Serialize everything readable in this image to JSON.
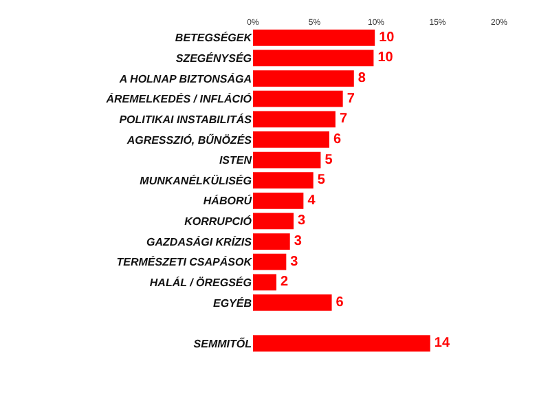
{
  "chart_data": {
    "type": "bar",
    "orientation": "horizontal",
    "categories": [
      "BETEGSÉGEK",
      "SZEGÉNYSÉG",
      "A HOLNAP BIZTONSÁGA",
      "ÁREMELKEDÉS / INFLÁCIÓ",
      "POLITIKAI INSTABILITÁS",
      "AGRESSZIÓ, BŰNÖZÉS",
      "ISTEN",
      "MUNKANÉLKÜLISÉG",
      "HÁBORÚ",
      "KORRUPCIÓ",
      "GAZDASÁGI KRÍZIS",
      "TERMÉSZETI CSAPÁSOK",
      "HALÁL / ÖREGSÉG",
      "EGYÉB",
      null,
      "SEMMITŐL"
    ],
    "values": [
      9.9,
      9.8,
      8.2,
      7.3,
      6.7,
      6.2,
      5.5,
      4.9,
      4.1,
      3.3,
      3.0,
      2.7,
      1.9,
      6.4,
      null,
      14.4
    ],
    "value_labels": [
      "10",
      "10",
      "8",
      "7",
      "7",
      "6",
      "5",
      "5",
      "4",
      "3",
      "3",
      "3",
      "2",
      "6",
      null,
      "14"
    ],
    "color": "#ff0000",
    "xlim": [
      0,
      20
    ],
    "xticks": [
      {
        "value": 0,
        "label": "0%"
      },
      {
        "value": 5,
        "label": "5%"
      },
      {
        "value": 10,
        "label": "10%"
      },
      {
        "value": 15,
        "label": "15%"
      },
      {
        "value": 20,
        "label": "20%"
      }
    ],
    "grid": false
  }
}
